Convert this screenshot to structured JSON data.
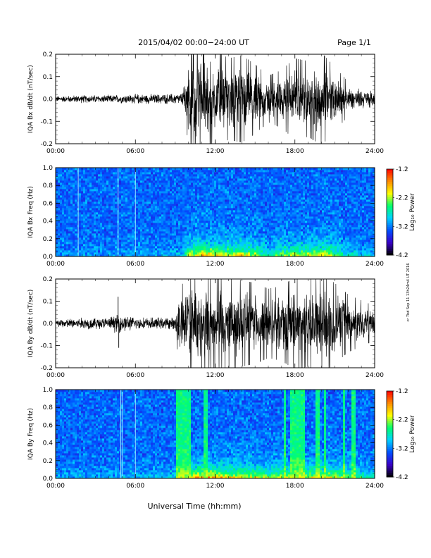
{
  "header": {
    "title": "2015/04/02  00:00−24:00 UT",
    "page": "Page 1/1"
  },
  "side_note": "cr 7bd Sep 11 13h24m4 UT 2016",
  "xlabel": "Universal Time (hh:mm)",
  "colors": {
    "background": "#ffffff",
    "trace": "#000000",
    "colorbar": [
      "#000000",
      "#3a00c8",
      "#0050ff",
      "#00d2ff",
      "#00ff6e",
      "#ffff00",
      "#ff8c00",
      "#ff0000"
    ]
  },
  "chart_data": [
    {
      "type": "line",
      "ylabel": "IQA Bx dB/dt (nT/sec)",
      "xlim": [
        0,
        24
      ],
      "ylim": [
        -0.2,
        0.2
      ],
      "x_ticks": [
        "00:00",
        "06:00",
        "12:00",
        "18:00",
        "24:00"
      ],
      "y_ticks": [
        "-0.2",
        "-0.1",
        "0.0",
        "0.1",
        "0.2"
      ],
      "envelope": {
        "hours": [
          0,
          2,
          4,
          6,
          8,
          9.5,
          10,
          11,
          12,
          13,
          14,
          15,
          16,
          17,
          18,
          19,
          20,
          21,
          22,
          23,
          24
        ],
        "amplitude": [
          0.015,
          0.02,
          0.02,
          0.025,
          0.025,
          0.03,
          0.15,
          0.2,
          0.17,
          0.14,
          0.15,
          0.12,
          0.08,
          0.1,
          0.14,
          0.13,
          0.16,
          0.11,
          0.06,
          0.05,
          0.04
        ]
      }
    },
    {
      "type": "heatmap",
      "ylabel": "IQA Bx Freq (Hz)",
      "xlim": [
        0,
        24
      ],
      "ylim": [
        0.0,
        1.0
      ],
      "x_ticks": [
        "00:00",
        "06:00",
        "12:00",
        "18:00",
        "24:00"
      ],
      "y_ticks": [
        "0.0",
        "0.2",
        "0.4",
        "0.6",
        "0.8",
        "1.0"
      ],
      "colorbar": {
        "label": "Log₁₀ Power",
        "range": [
          -4.2,
          -1.2
        ],
        "ticks": [
          "-1.2",
          "-2.2",
          "-3.2",
          "-4.2"
        ]
      },
      "activity": {
        "hours": [
          0,
          2,
          4,
          6,
          8,
          9.5,
          10,
          11,
          12,
          13,
          14,
          15,
          16,
          17,
          18,
          19,
          20,
          21,
          22,
          23,
          24
        ],
        "level": [
          0.1,
          0.12,
          0.12,
          0.15,
          0.15,
          0.2,
          0.7,
          0.9,
          0.8,
          0.7,
          0.75,
          0.65,
          0.45,
          0.55,
          0.7,
          0.65,
          0.75,
          0.6,
          0.35,
          0.3,
          0.25
        ]
      },
      "stripes": [
        1.7,
        4.7,
        6.0
      ]
    },
    {
      "type": "line",
      "ylabel": "IQA By dB/dt (nT/sec)",
      "xlim": [
        0,
        24
      ],
      "ylim": [
        -0.2,
        0.2
      ],
      "x_ticks": [
        "00:00",
        "06:00",
        "12:00",
        "18:00",
        "24:00"
      ],
      "y_ticks": [
        "-0.2",
        "-0.1",
        "0.0",
        "0.1",
        "0.2"
      ],
      "envelope": {
        "hours": [
          0,
          2,
          4,
          4.7,
          6,
          8,
          9,
          9.2,
          10,
          11,
          12,
          13,
          14,
          15,
          16,
          17,
          18,
          19,
          20,
          21,
          22,
          23,
          24
        ],
        "amplitude": [
          0.02,
          0.03,
          0.03,
          0.05,
          0.03,
          0.03,
          0.03,
          0.12,
          0.16,
          0.2,
          0.17,
          0.16,
          0.15,
          0.14,
          0.12,
          0.13,
          0.16,
          0.15,
          0.17,
          0.14,
          0.1,
          0.08,
          0.06
        ]
      },
      "spikes": [
        {
          "hour": 4.7,
          "value": 0.12
        },
        {
          "hour": 4.75,
          "value": -0.11
        }
      ]
    },
    {
      "type": "heatmap",
      "ylabel": "IQA By Freq (Hz)",
      "xlim": [
        0,
        24
      ],
      "ylim": [
        0.0,
        1.0
      ],
      "x_ticks": [
        "00:00",
        "06:00",
        "12:00",
        "18:00",
        "24:00"
      ],
      "y_ticks": [
        "0.0",
        "0.2",
        "0.4",
        "0.6",
        "0.8",
        "1.0"
      ],
      "colorbar": {
        "label": "Log₁₀ Power",
        "range": [
          -4.2,
          -1.2
        ],
        "ticks": [
          "-1.2",
          "-2.2",
          "-3.2",
          "-4.2"
        ]
      },
      "activity": {
        "hours": [
          0,
          2,
          4,
          6,
          8,
          9,
          10,
          11,
          12,
          13,
          14,
          15,
          16,
          17,
          18,
          19,
          20,
          21,
          22,
          23,
          24
        ],
        "level": [
          0.15,
          0.15,
          0.15,
          0.18,
          0.18,
          0.3,
          0.8,
          0.9,
          0.85,
          0.8,
          0.75,
          0.7,
          0.6,
          0.65,
          0.75,
          0.7,
          0.8,
          0.7,
          0.55,
          0.5,
          0.4
        ]
      },
      "stripes": [
        4.9,
        5.0,
        6.0
      ],
      "bands": [
        {
          "start": 9.1,
          "end": 10.2
        },
        {
          "start": 11.1,
          "end": 11.5
        },
        {
          "start": 17.1,
          "end": 17.3
        },
        {
          "start": 17.6,
          "end": 18.8
        },
        {
          "start": 19.6,
          "end": 19.8
        },
        {
          "start": 20.2,
          "end": 20.4
        },
        {
          "start": 21.6,
          "end": 21.8
        },
        {
          "start": 22.2,
          "end": 22.5
        }
      ]
    }
  ]
}
